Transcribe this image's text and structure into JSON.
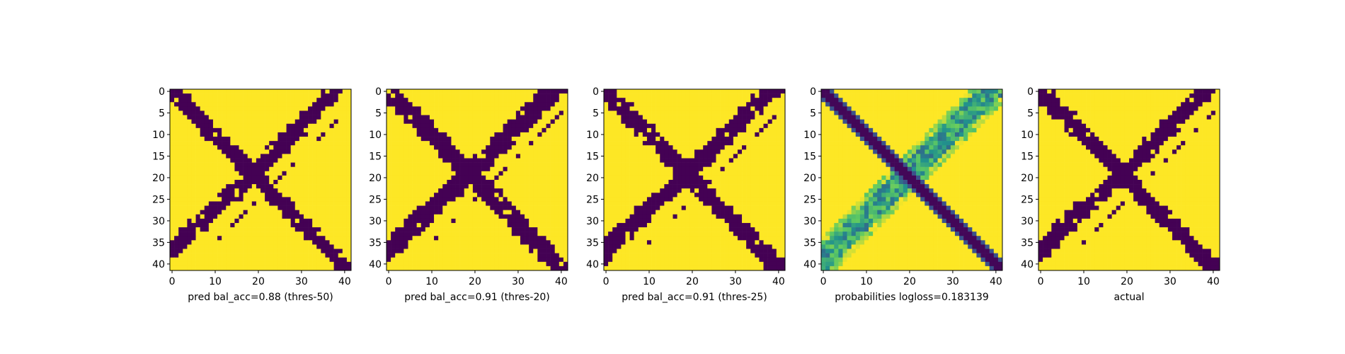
{
  "chart_data": [
    {
      "type": "heatmap",
      "xlabel": "pred bal_acc=0.88 (thres-50)",
      "xticks": [
        0,
        10,
        20,
        30,
        40
      ],
      "yticks": [
        0,
        5,
        10,
        15,
        20,
        25,
        30,
        35,
        40
      ],
      "xlim": [
        -0.5,
        41.5
      ],
      "ylim": [
        41.5,
        -0.5
      ],
      "grid": false,
      "colormap": "viridis",
      "pattern": "binary X: main diagonal band plus anti-diagonal band from top-right to bottom-left"
    },
    {
      "type": "heatmap",
      "xlabel": "pred bal_acc=0.91 (thres-20)",
      "xticks": [
        0,
        10,
        20,
        30,
        40
      ],
      "yticks": [
        0,
        5,
        10,
        15,
        20,
        25,
        30,
        35,
        40
      ],
      "xlim": [
        -0.5,
        41.5
      ],
      "ylim": [
        41.5,
        -0.5
      ],
      "grid": false,
      "colormap": "viridis",
      "pattern": "binary X with wider bands"
    },
    {
      "type": "heatmap",
      "xlabel": "pred bal_acc=0.91 (thres-25)",
      "xticks": [
        0,
        10,
        20,
        30,
        40
      ],
      "yticks": [
        0,
        5,
        10,
        15,
        20,
        25,
        30,
        35,
        40
      ],
      "xlim": [
        -0.5,
        41.5
      ],
      "ylim": [
        41.5,
        -0.5
      ],
      "grid": false,
      "colormap": "viridis",
      "pattern": "binary X"
    },
    {
      "type": "heatmap",
      "xlabel": "probabilities logloss=0.183139",
      "xticks": [
        0,
        10,
        20,
        30,
        40
      ],
      "yticks": [
        0,
        5,
        10,
        15,
        20,
        25,
        30,
        35,
        40
      ],
      "xlim": [
        -0.5,
        41.5
      ],
      "ylim": [
        41.5,
        -0.5
      ],
      "grid": false,
      "colormap": "viridis",
      "pattern": "continuous probabilities: thin dark main diagonal, blurred green anti-diagonal"
    },
    {
      "type": "heatmap",
      "xlabel": "actual",
      "xticks": [
        0,
        10,
        20,
        30,
        40
      ],
      "yticks": [
        0,
        5,
        10,
        15,
        20,
        25,
        30,
        35,
        40
      ],
      "xlim": [
        -0.5,
        41.5
      ],
      "ylim": [
        41.5,
        -0.5
      ],
      "grid": false,
      "colormap": "viridis",
      "pattern": "binary X ground truth"
    }
  ],
  "colors": {
    "dark": "#440154",
    "bright": "#fde725",
    "mid": "#21918c",
    "light": "#5ec962"
  }
}
